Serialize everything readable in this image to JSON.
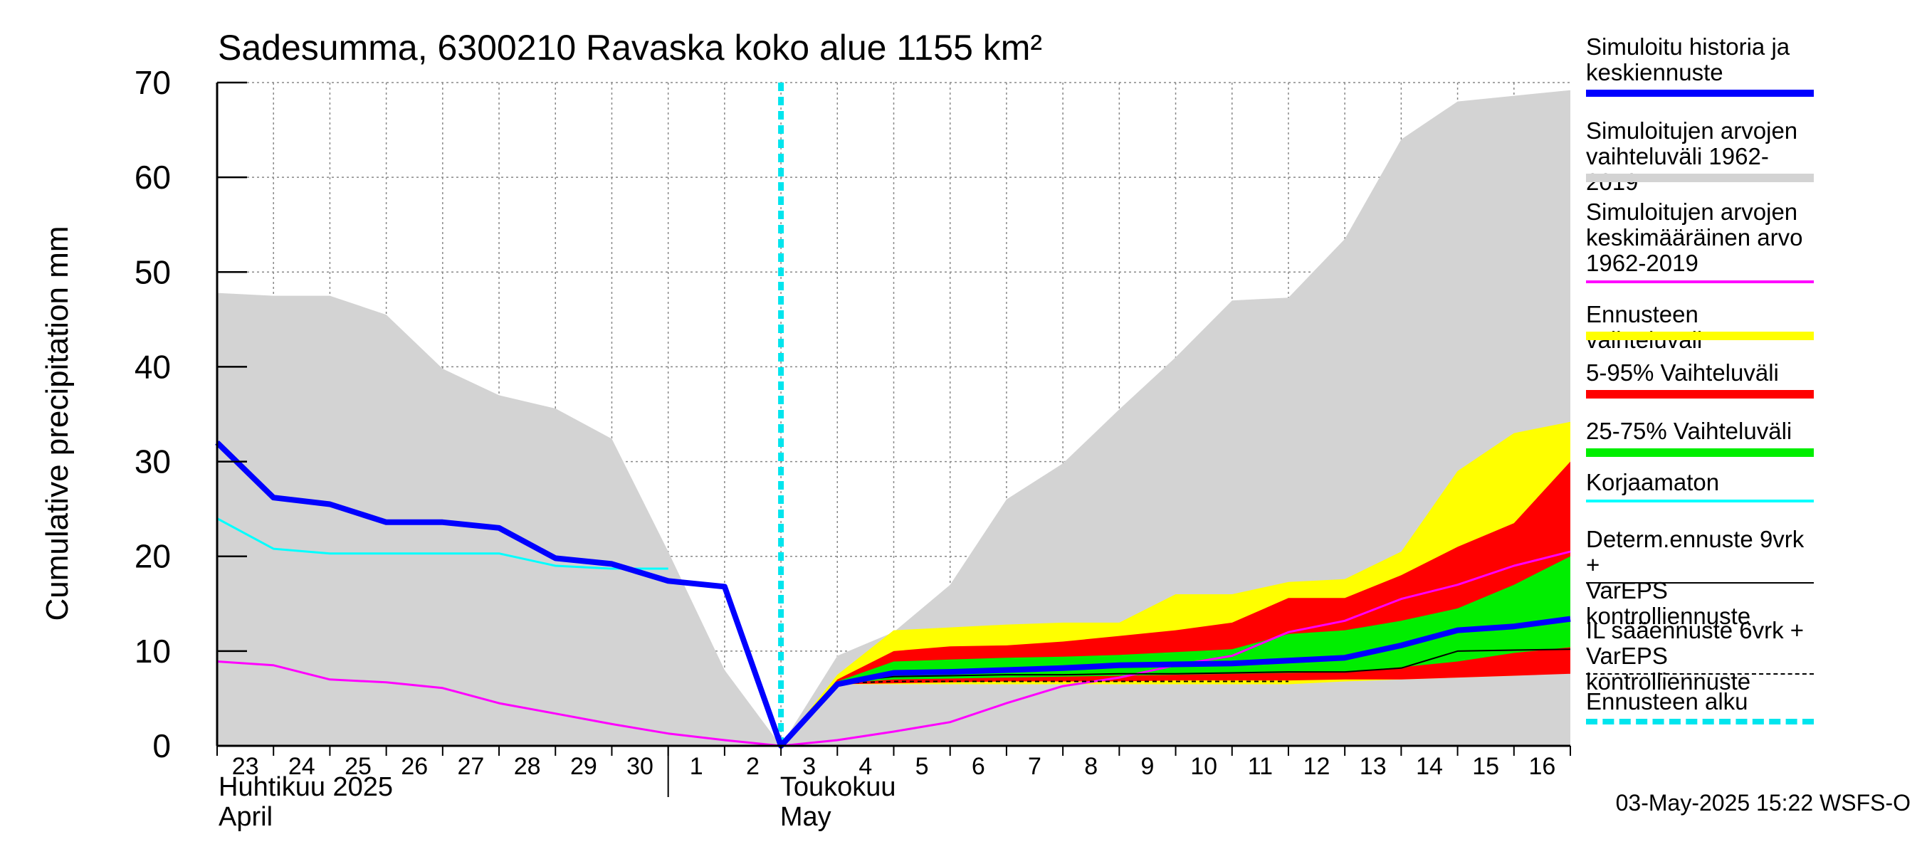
{
  "chart_data": {
    "type": "area",
    "title": "Sadesumma, 6300210 Ravaska koko alue 1155 km²",
    "ylabel": "Cumulative precipitation   mm",
    "ylim": [
      0,
      70
    ],
    "yticks": [
      0,
      10,
      20,
      30,
      40,
      50,
      60,
      70
    ],
    "x_start": "2025-04-23",
    "x_end": "2025-05-16",
    "x_tick_labels": [
      "23",
      "24",
      "25",
      "26",
      "27",
      "28",
      "29",
      "30",
      "1",
      "2",
      "3",
      "4",
      "5",
      "6",
      "7",
      "8",
      "9",
      "10",
      "11",
      "12",
      "13",
      "14",
      "15",
      "16"
    ],
    "month_labels": [
      {
        "line1": "Huhtikuu  2025",
        "line2": "April",
        "at": "2025-04-23"
      },
      {
        "line1": "Toukokuu",
        "line2": "May",
        "at": "2025-05-02"
      }
    ],
    "forecast_start": "2025-05-03",
    "grid": true,
    "legend_position": "right",
    "timestamp": "03-May-2025 15:22 WSFS-O",
    "x": [
      "2025-04-23",
      "2025-04-24",
      "2025-04-25",
      "2025-04-26",
      "2025-04-27",
      "2025-04-28",
      "2025-04-29",
      "2025-04-30",
      "2025-05-01",
      "2025-05-02",
      "2025-05-03",
      "2025-05-04",
      "2025-05-05",
      "2025-05-06",
      "2025-05-07",
      "2025-05-08",
      "2025-05-09",
      "2025-05-10",
      "2025-05-11",
      "2025-05-12",
      "2025-05-13",
      "2025-05-14",
      "2025-05-15",
      "2025-05-16",
      "2025-05-17"
    ],
    "bands": [
      {
        "name": "Simuloitujen arvojen vaihteluväli 1962-2019",
        "color": "#d3d3d3",
        "x": [
          "2025-04-23",
          "2025-04-24",
          "2025-04-25",
          "2025-04-26",
          "2025-04-27",
          "2025-04-28",
          "2025-04-29",
          "2025-04-30",
          "2025-05-01",
          "2025-05-02",
          "2025-05-03",
          "2025-05-04",
          "2025-05-05",
          "2025-05-06",
          "2025-05-07",
          "2025-05-08",
          "2025-05-09",
          "2025-05-10",
          "2025-05-11",
          "2025-05-12",
          "2025-05-13",
          "2025-05-14",
          "2025-05-15",
          "2025-05-16",
          "2025-05-17"
        ],
        "low": [
          0,
          0,
          0,
          0,
          0,
          0,
          0,
          0,
          0,
          0,
          0,
          0,
          0,
          0,
          0,
          0,
          0,
          0,
          0,
          0,
          0,
          0,
          0,
          0,
          0
        ],
        "high": [
          47.8,
          47.5,
          47.5,
          45.5,
          39.8,
          37.0,
          35.6,
          32.4,
          20.5,
          8.0,
          0,
          9.5,
          12.0,
          17.0,
          26.0,
          29.8,
          35.5,
          41.0,
          47.0,
          47.3,
          53.5,
          64.0,
          68.0,
          68.6,
          69.2
        ]
      },
      {
        "name": "Ennusteen vaihteluväli",
        "color": "#ffff00",
        "x": [
          "2025-05-03",
          "2025-05-04",
          "2025-05-05",
          "2025-05-06",
          "2025-05-07",
          "2025-05-08",
          "2025-05-09",
          "2025-05-10",
          "2025-05-11",
          "2025-05-12",
          "2025-05-13",
          "2025-05-14",
          "2025-05-15",
          "2025-05-16",
          "2025-05-17"
        ],
        "low": [
          0,
          6.5,
          6.5,
          6.5,
          6.5,
          6.5,
          6.5,
          6.5,
          6.5,
          6.5,
          6.8,
          7.0,
          7.2,
          7.4,
          7.7
        ],
        "high": [
          0,
          7.5,
          12.2,
          12.5,
          12.8,
          13.0,
          13.0,
          16.0,
          16.0,
          17.3,
          17.6,
          20.5,
          29.0,
          33.0,
          34.2
        ]
      },
      {
        "name": "5-95% Vaihteluväli",
        "color": "#ff0000",
        "x": [
          "2025-05-03",
          "2025-05-04",
          "2025-05-05",
          "2025-05-06",
          "2025-05-07",
          "2025-05-08",
          "2025-05-09",
          "2025-05-10",
          "2025-05-11",
          "2025-05-12",
          "2025-05-13",
          "2025-05-14",
          "2025-05-15",
          "2025-05-16",
          "2025-05-17"
        ],
        "low": [
          0,
          6.5,
          6.6,
          6.7,
          6.8,
          6.8,
          6.8,
          6.9,
          6.9,
          6.9,
          7.0,
          7.0,
          7.2,
          7.4,
          7.6
        ],
        "high": [
          0,
          7.0,
          10.0,
          10.5,
          10.6,
          11.0,
          11.6,
          12.2,
          13.0,
          15.6,
          15.6,
          18.0,
          21.0,
          23.5,
          30.0
        ]
      },
      {
        "name": "25-75% Vaihteluväli",
        "color": "#00ee00",
        "x": [
          "2025-05-03",
          "2025-05-04",
          "2025-05-05",
          "2025-05-06",
          "2025-05-07",
          "2025-05-08",
          "2025-05-09",
          "2025-05-10",
          "2025-05-11",
          "2025-05-12",
          "2025-05-13",
          "2025-05-14",
          "2025-05-15",
          "2025-05-16",
          "2025-05-17"
        ],
        "low": [
          0,
          6.6,
          7.0,
          7.1,
          7.2,
          7.3,
          7.4,
          7.5,
          7.6,
          7.7,
          7.8,
          8.3,
          8.9,
          9.8,
          10.4
        ],
        "high": [
          0,
          6.8,
          8.9,
          9.1,
          9.3,
          9.4,
          9.6,
          9.9,
          10.2,
          11.8,
          12.2,
          13.2,
          14.5,
          17.0,
          20.0
        ]
      }
    ],
    "series": [
      {
        "name": "Simuloitu historia ja keskiennuste",
        "color": "#0000ff",
        "width": 8,
        "x": [
          "2025-04-23",
          "2025-04-24",
          "2025-04-25",
          "2025-04-26",
          "2025-04-27",
          "2025-04-28",
          "2025-04-29",
          "2025-04-30",
          "2025-05-01",
          "2025-05-02",
          "2025-05-03",
          "2025-05-04",
          "2025-05-05",
          "2025-05-06",
          "2025-05-07",
          "2025-05-08",
          "2025-05-09",
          "2025-05-10",
          "2025-05-11",
          "2025-05-12",
          "2025-05-13",
          "2025-05-14",
          "2025-05-15",
          "2025-05-16",
          "2025-05-17"
        ],
        "y": [
          32.0,
          26.2,
          25.5,
          23.6,
          23.6,
          23.0,
          19.8,
          19.2,
          17.4,
          16.8,
          0,
          6.5,
          7.7,
          7.8,
          8.0,
          8.2,
          8.5,
          8.6,
          8.7,
          9.0,
          9.3,
          10.6,
          12.2,
          12.6,
          13.4
        ]
      },
      {
        "name": "Simuloitujen arvojen keskimääräinen arvo 1962-2019",
        "color": "#ff00ff",
        "width": 3,
        "x": [
          "2025-04-23",
          "2025-04-24",
          "2025-04-25",
          "2025-04-26",
          "2025-04-27",
          "2025-04-28",
          "2025-04-29",
          "2025-04-30",
          "2025-05-01",
          "2025-05-02",
          "2025-05-03",
          "2025-05-04",
          "2025-05-05",
          "2025-05-06",
          "2025-05-07",
          "2025-05-08",
          "2025-05-09",
          "2025-05-10",
          "2025-05-11",
          "2025-05-12",
          "2025-05-13",
          "2025-05-14",
          "2025-05-15",
          "2025-05-16",
          "2025-05-17"
        ],
        "y": [
          8.9,
          8.5,
          7.0,
          6.7,
          6.1,
          4.5,
          3.4,
          2.3,
          1.3,
          0.6,
          0,
          0.6,
          1.5,
          2.5,
          4.5,
          6.3,
          7.2,
          8.5,
          9.5,
          12.0,
          13.2,
          15.5,
          17.0,
          19.0,
          20.5
        ]
      },
      {
        "name": "Korjaamaton",
        "color": "#00ffff",
        "width": 3,
        "x": [
          "2025-04-23",
          "2025-04-24",
          "2025-04-25",
          "2025-04-26",
          "2025-04-27",
          "2025-04-28",
          "2025-04-29",
          "2025-04-30",
          "2025-05-01"
        ],
        "y": [
          24.0,
          20.8,
          20.3,
          20.3,
          20.3,
          20.3,
          19.0,
          18.7,
          18.7
        ]
      },
      {
        "name": "Determ.ennuste 9vrk + VarEPS kontrolliennuste",
        "color": "#000000",
        "width": 2,
        "x": [
          "2025-05-03",
          "2025-05-04",
          "2025-05-05",
          "2025-05-06",
          "2025-05-07",
          "2025-05-08",
          "2025-05-09",
          "2025-05-10",
          "2025-05-11",
          "2025-05-12",
          "2025-05-13",
          "2025-05-14",
          "2025-05-15",
          "2025-05-16",
          "2025-05-17"
        ],
        "y": [
          0,
          6.7,
          7.3,
          7.4,
          7.5,
          7.5,
          7.6,
          7.6,
          7.7,
          7.8,
          7.8,
          8.2,
          10.0,
          10.1,
          10.2
        ]
      },
      {
        "name": "IL sääennuste 6vrk + VarEPS kontrolliennuste",
        "color": "#000000",
        "width": 2,
        "dashed": true,
        "x": [
          "2025-05-03",
          "2025-05-04",
          "2025-05-05",
          "2025-05-06",
          "2025-05-07",
          "2025-05-08",
          "2025-05-09",
          "2025-05-10",
          "2025-05-11",
          "2025-05-12"
        ],
        "y": [
          0,
          6.6,
          6.8,
          6.8,
          6.8,
          6.8,
          6.8,
          6.8,
          6.8,
          6.8
        ]
      }
    ],
    "legend": [
      {
        "label": "Simuloitu historia ja\nkeskiennuste",
        "color": "#0000ff",
        "style": "thick"
      },
      {
        "label": "Simuloitujen arvojen\nvaihteluväli 1962-2019",
        "color": "#d3d3d3",
        "style": "band"
      },
      {
        "label": "Simuloitujen arvojen\nkeskimääräinen arvo\n   1962-2019",
        "color": "#ff00ff",
        "style": "line"
      },
      {
        "label": "Ennusteen vaihteluväli",
        "color": "#ffff00",
        "style": "band"
      },
      {
        "label": "5-95% Vaihteluväli",
        "color": "#ff0000",
        "style": "band"
      },
      {
        "label": "25-75% Vaihteluväli",
        "color": "#00ee00",
        "style": "band"
      },
      {
        "label": "Korjaamaton",
        "color": "#00ffff",
        "style": "line"
      },
      {
        "label": "Determ.ennuste 9vrk +\nVarEPS kontrolliennuste",
        "color": "#000000",
        "style": "thin"
      },
      {
        "label": "IL sääennuste 6vrk  +\n  VarEPS kontrolliennuste",
        "color": "#000000",
        "style": "dashed"
      },
      {
        "label": "Ennusteen alku",
        "color": "#00e5ee",
        "style": "dotted"
      }
    ]
  }
}
